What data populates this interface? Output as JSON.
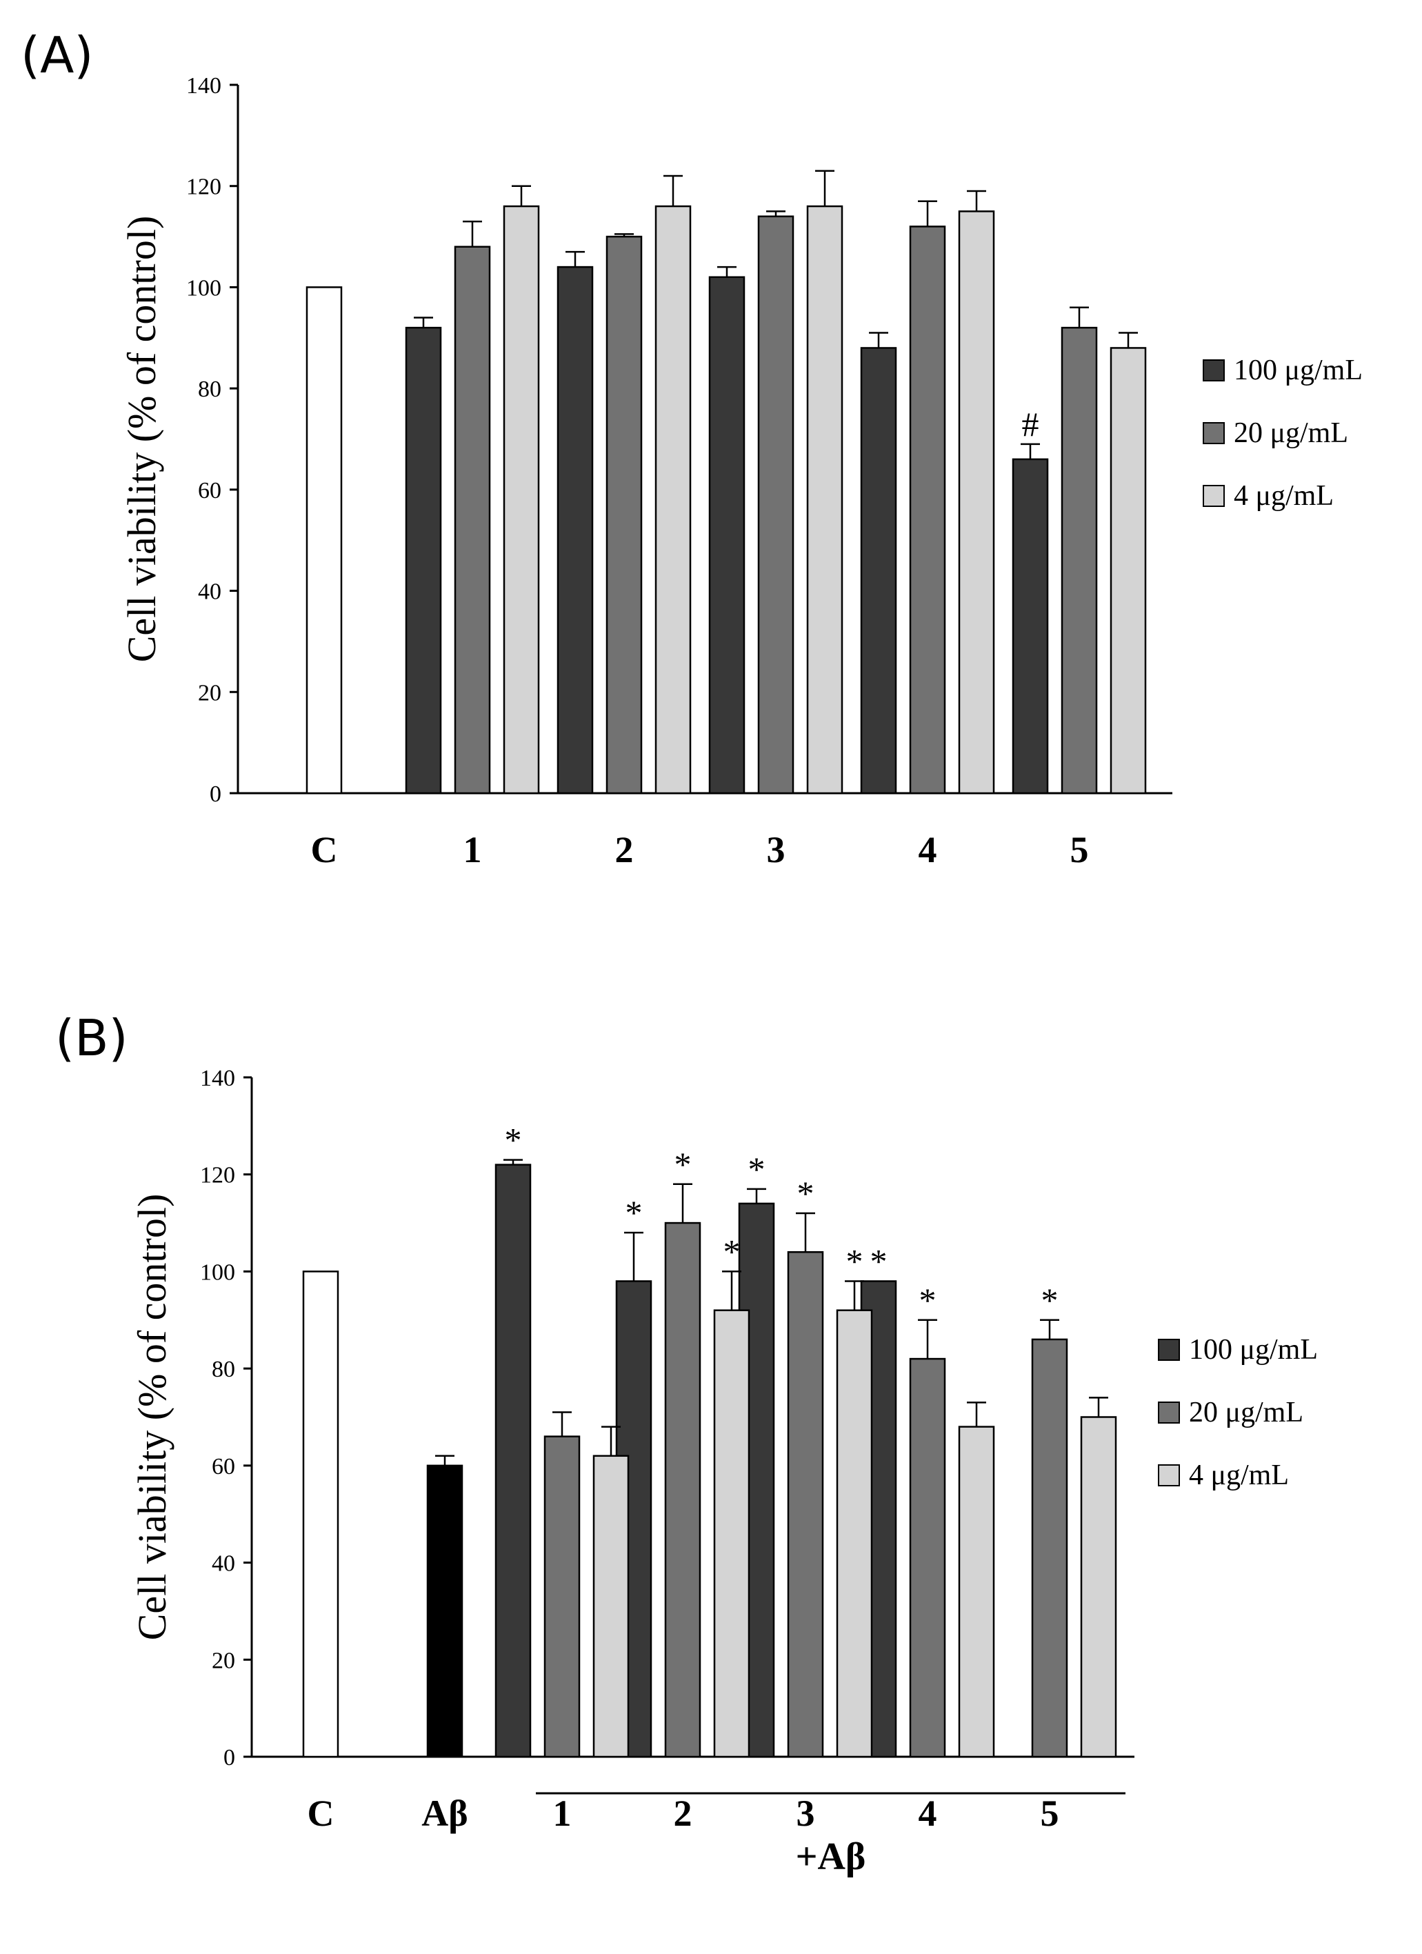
{
  "colors": {
    "control": "#ffffff",
    "abeta": "#000000",
    "c100": "#383838",
    "c20": "#727272",
    "c4": "#d4d4d4"
  },
  "chart_data": [
    {
      "type": "bar",
      "panel_label": "(A)",
      "ylabel": "Cell viability (% of control)",
      "xlabel": "",
      "ylim": [
        0,
        140
      ],
      "yticks": [
        0,
        20,
        40,
        60,
        80,
        100,
        120,
        140
      ],
      "categories": [
        "C",
        "1",
        "2",
        "3",
        "4",
        "5"
      ],
      "controls": [
        {
          "category": "C",
          "value": 100,
          "error": 0,
          "color_key": "control"
        }
      ],
      "series": [
        {
          "name": "100 μg/mL",
          "color_key": "c100",
          "values": [
            null,
            92,
            104,
            102,
            88,
            66
          ],
          "errors": [
            null,
            2,
            3,
            2,
            3,
            3
          ],
          "markers": [
            null,
            "",
            "",
            "",
            "",
            "#"
          ]
        },
        {
          "name": "20 μg/mL",
          "color_key": "c20",
          "values": [
            null,
            108,
            110,
            114,
            112,
            92
          ],
          "errors": [
            null,
            5,
            0.5,
            1,
            5,
            4
          ],
          "markers": [
            null,
            "",
            "",
            "",
            "",
            ""
          ]
        },
        {
          "name": "4 μg/mL",
          "color_key": "c4",
          "values": [
            null,
            116,
            116,
            116,
            115,
            88
          ],
          "errors": [
            null,
            4,
            6,
            7,
            4,
            3
          ],
          "markers": [
            null,
            "",
            "",
            "",
            "",
            ""
          ]
        }
      ],
      "legend": [
        "100 μg/mL",
        "20 μg/mL",
        "4 μg/mL"
      ],
      "legend_position": "right"
    },
    {
      "type": "bar",
      "panel_label": "(B)",
      "ylabel": "Cell viability (% of control)",
      "xlabel": "",
      "ylim": [
        0,
        140
      ],
      "yticks": [
        0,
        20,
        40,
        60,
        80,
        100,
        120,
        140
      ],
      "categories": [
        "C",
        "Aβ",
        "1",
        "2",
        "3",
        "4",
        "5"
      ],
      "group_label": "+Aβ",
      "controls": [
        {
          "category": "C",
          "value": 100,
          "error": 0,
          "color_key": "control"
        },
        {
          "category": "Aβ",
          "value": 60,
          "error": 2,
          "color_key": "abeta"
        }
      ],
      "series": [
        {
          "name": "100 μg/mL",
          "color_key": "c100",
          "values": [
            null,
            null,
            122,
            98,
            114,
            98,
            null
          ],
          "errors": [
            null,
            null,
            1,
            10,
            3,
            0,
            null
          ],
          "markers": [
            null,
            null,
            "*",
            "*",
            "*",
            "*",
            ""
          ]
        },
        {
          "name": "20 μg/mL",
          "color_key": "c20",
          "values": [
            null,
            null,
            66,
            110,
            104,
            82,
            86
          ],
          "errors": [
            null,
            null,
            5,
            8,
            8,
            8,
            4
          ],
          "markers": [
            null,
            null,
            "",
            "*",
            "*",
            "*",
            "*"
          ]
        },
        {
          "name": "4 μg/mL",
          "color_key": "c4",
          "values": [
            null,
            null,
            62,
            92,
            92,
            68,
            70
          ],
          "errors": [
            null,
            null,
            6,
            8,
            6,
            5,
            4
          ],
          "markers": [
            null,
            null,
            "",
            "*",
            "*",
            "",
            ""
          ]
        }
      ],
      "legend": [
        "100 μg/mL",
        "20 μg/mL",
        "4 μg/mL"
      ],
      "legend_position": "right"
    }
  ]
}
